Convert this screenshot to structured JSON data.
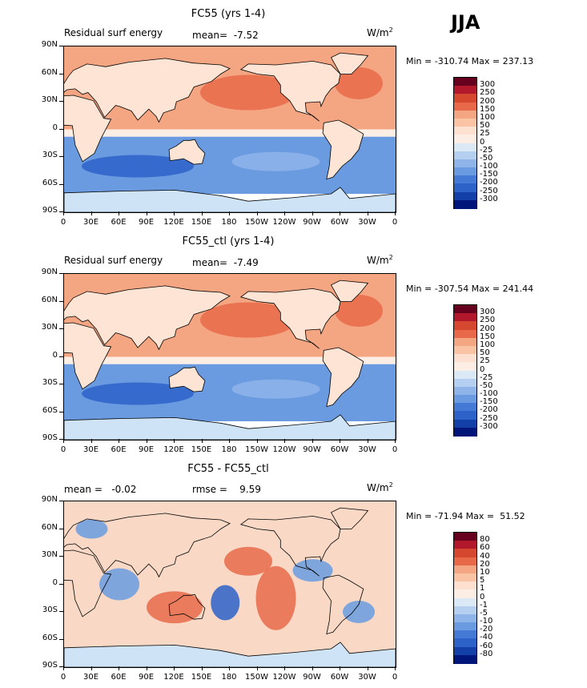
{
  "season": "JJA",
  "units_label": "W/m",
  "units_exp": "2",
  "y_ticks": [
    "90N",
    "60N",
    "30N",
    "0",
    "30S",
    "60S",
    "90S"
  ],
  "x_ticks": [
    "0",
    "30E",
    "60E",
    "90E",
    "120E",
    "150E",
    "180",
    "150W",
    "120W",
    "90W",
    "60W",
    "30W",
    "0"
  ],
  "colors": {
    "ocean_pos": "#f4a582",
    "ocean_strong_pos": "#e86a4a",
    "ocean_neg": "#6a9be0",
    "ocean_strong_neg": "#2d62c8",
    "land": "#fde4d4",
    "antarctica": "#cfe3f6"
  },
  "panels": [
    {
      "title": "FC55 (yrs 1-4)",
      "left_label": "Residual surf energy",
      "stat_text": "mean=  -7.52",
      "minmax": "Min = -310.74 Max = 237.13",
      "colorbar": {
        "labels": [
          "300",
          "250",
          "200",
          "150",
          "100",
          "50",
          "25",
          "0",
          "-25",
          "-50",
          "-100",
          "-150",
          "-200",
          "-250",
          "-300"
        ],
        "colors": [
          "#67001f",
          "#b2182b",
          "#d6472f",
          "#e8684a",
          "#f4a582",
          "#f9c3a4",
          "#fde0cf",
          "#fdeee5",
          "#dbe9f6",
          "#b5cff0",
          "#8fb4ea",
          "#6a9be0",
          "#4479d6",
          "#2d62c8",
          "#1340a8",
          "#00157a"
        ]
      }
    },
    {
      "title": "FC55_ctl (yrs 1-4)",
      "left_label": "Residual surf energy",
      "stat_text": "mean=  -7.49",
      "minmax": "Min = -307.54 Max = 241.44",
      "colorbar": {
        "labels": [
          "300",
          "250",
          "200",
          "150",
          "100",
          "50",
          "25",
          "0",
          "-25",
          "-50",
          "-100",
          "-150",
          "-200",
          "-250",
          "-300"
        ],
        "colors": [
          "#67001f",
          "#b2182b",
          "#d6472f",
          "#e8684a",
          "#f4a582",
          "#f9c3a4",
          "#fde0cf",
          "#fdeee5",
          "#dbe9f6",
          "#b5cff0",
          "#8fb4ea",
          "#6a9be0",
          "#4479d6",
          "#2d62c8",
          "#1340a8",
          "#00157a"
        ]
      }
    },
    {
      "title": "FC55 - FC55_ctl",
      "left_label": "mean =   -0.02",
      "stat_text": "rmse =    9.59",
      "minmax": "Min = -71.94 Max =  51.52",
      "colorbar": {
        "labels": [
          "80",
          "60",
          "40",
          "20",
          "10",
          "5",
          "1",
          "0",
          "-1",
          "-5",
          "-10",
          "-20",
          "-40",
          "-60",
          "-80"
        ],
        "colors": [
          "#67001f",
          "#b2182b",
          "#d6472f",
          "#e8684a",
          "#f4a582",
          "#f9c3a4",
          "#fde0cf",
          "#fdeee5",
          "#dbe9f6",
          "#b5cff0",
          "#8fb4ea",
          "#6a9be0",
          "#4479d6",
          "#2d62c8",
          "#1340a8",
          "#00157a"
        ]
      }
    }
  ]
}
